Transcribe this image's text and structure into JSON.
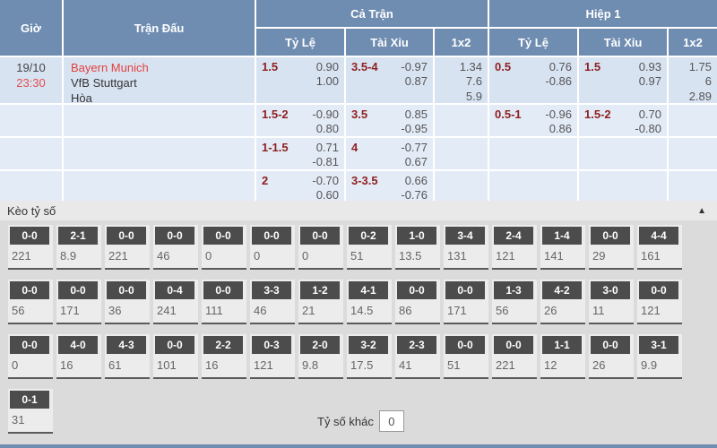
{
  "odds_table": {
    "header": {
      "time": "Giờ",
      "match": "Trận Đấu",
      "full_time": "Cả Trận",
      "first_half": "Hiệp 1",
      "handicap": "Tỷ Lệ",
      "over_under": "Tài Xỉu",
      "one_x_two": "1x2"
    },
    "match": {
      "date": "19/10",
      "time": "23:30",
      "home": "Bayern Munich",
      "away": "VfB Stuttgart",
      "draw": "Hòa"
    },
    "rows": [
      {
        "ft_hdp": {
          "line": "1.5",
          "odds1": "0.90",
          "odds2": "1.00"
        },
        "ft_ou": {
          "line": "3.5-4",
          "odds1": "-0.97",
          "odds2": "0.87"
        },
        "ft_1x2": [
          "1.34",
          "7.6",
          "5.9"
        ],
        "h1_hdp": {
          "line": "0.5",
          "odds1": "0.76",
          "odds2": "-0.86"
        },
        "h1_ou": {
          "line": "1.5",
          "odds1": "0.93",
          "odds2": "0.97"
        },
        "h1_1x2": [
          "1.75",
          "6",
          "2.89"
        ]
      },
      {
        "ft_hdp": {
          "line": "1.5-2",
          "odds1": "-0.90",
          "odds2": "0.80"
        },
        "ft_ou": {
          "line": "3.5",
          "odds1": "0.85",
          "odds2": "-0.95"
        },
        "h1_hdp": {
          "line": "0.5-1",
          "odds1": "-0.96",
          "odds2": "0.86"
        },
        "h1_ou": {
          "line": "1.5-2",
          "odds1": "0.70",
          "odds2": "-0.80"
        }
      },
      {
        "ft_hdp": {
          "line": "1-1.5",
          "odds1": "0.71",
          "odds2": "-0.81"
        },
        "ft_ou": {
          "line": "4",
          "odds1": "-0.77",
          "odds2": "0.67"
        }
      },
      {
        "ft_hdp": {
          "line": "2",
          "odds1": "-0.70",
          "odds2": "0.60"
        },
        "ft_ou": {
          "line": "3-3.5",
          "odds1": "0.66",
          "odds2": "-0.76"
        }
      }
    ]
  },
  "score_section": {
    "title": "Kèo tỷ số",
    "rows": [
      [
        {
          "s": "0-0",
          "v": "221"
        },
        {
          "s": "2-1",
          "v": "8.9"
        },
        {
          "s": "0-0",
          "v": "221"
        },
        {
          "s": "0-0",
          "v": "46"
        },
        {
          "s": "0-0",
          "v": "0"
        },
        {
          "s": "0-0",
          "v": "0"
        },
        {
          "s": "0-0",
          "v": "0"
        },
        {
          "s": "0-2",
          "v": "51"
        },
        {
          "s": "1-0",
          "v": "13.5"
        },
        {
          "s": "3-4",
          "v": "131"
        },
        {
          "s": "2-4",
          "v": "121"
        },
        {
          "s": "1-4",
          "v": "141"
        },
        {
          "s": "0-0",
          "v": "29"
        },
        {
          "s": "4-4",
          "v": "161"
        }
      ],
      [
        {
          "s": "0-0",
          "v": "56"
        },
        {
          "s": "0-0",
          "v": "171"
        },
        {
          "s": "0-0",
          "v": "36"
        },
        {
          "s": "0-4",
          "v": "241"
        },
        {
          "s": "0-0",
          "v": "111"
        },
        {
          "s": "3-3",
          "v": "46"
        },
        {
          "s": "1-2",
          "v": "21"
        },
        {
          "s": "4-1",
          "v": "14.5"
        },
        {
          "s": "0-0",
          "v": "86"
        },
        {
          "s": "0-0",
          "v": "171"
        },
        {
          "s": "1-3",
          "v": "56"
        },
        {
          "s": "4-2",
          "v": "26"
        },
        {
          "s": "3-0",
          "v": "11"
        },
        {
          "s": "0-0",
          "v": "121"
        }
      ],
      [
        {
          "s": "0-0",
          "v": "0"
        },
        {
          "s": "4-0",
          "v": "16"
        },
        {
          "s": "4-3",
          "v": "61"
        },
        {
          "s": "0-0",
          "v": "101"
        },
        {
          "s": "2-2",
          "v": "16"
        },
        {
          "s": "0-3",
          "v": "121"
        },
        {
          "s": "2-0",
          "v": "9.8"
        },
        {
          "s": "3-2",
          "v": "17.5"
        },
        {
          "s": "2-3",
          "v": "41"
        },
        {
          "s": "0-0",
          "v": "51"
        },
        {
          "s": "0-0",
          "v": "221"
        },
        {
          "s": "1-1",
          "v": "12"
        },
        {
          "s": "0-0",
          "v": "26"
        },
        {
          "s": "3-1",
          "v": "9.9"
        }
      ],
      [
        {
          "s": "0-1",
          "v": "31"
        }
      ]
    ],
    "other_label": "Tỷ số khác",
    "other_value": "0"
  }
}
